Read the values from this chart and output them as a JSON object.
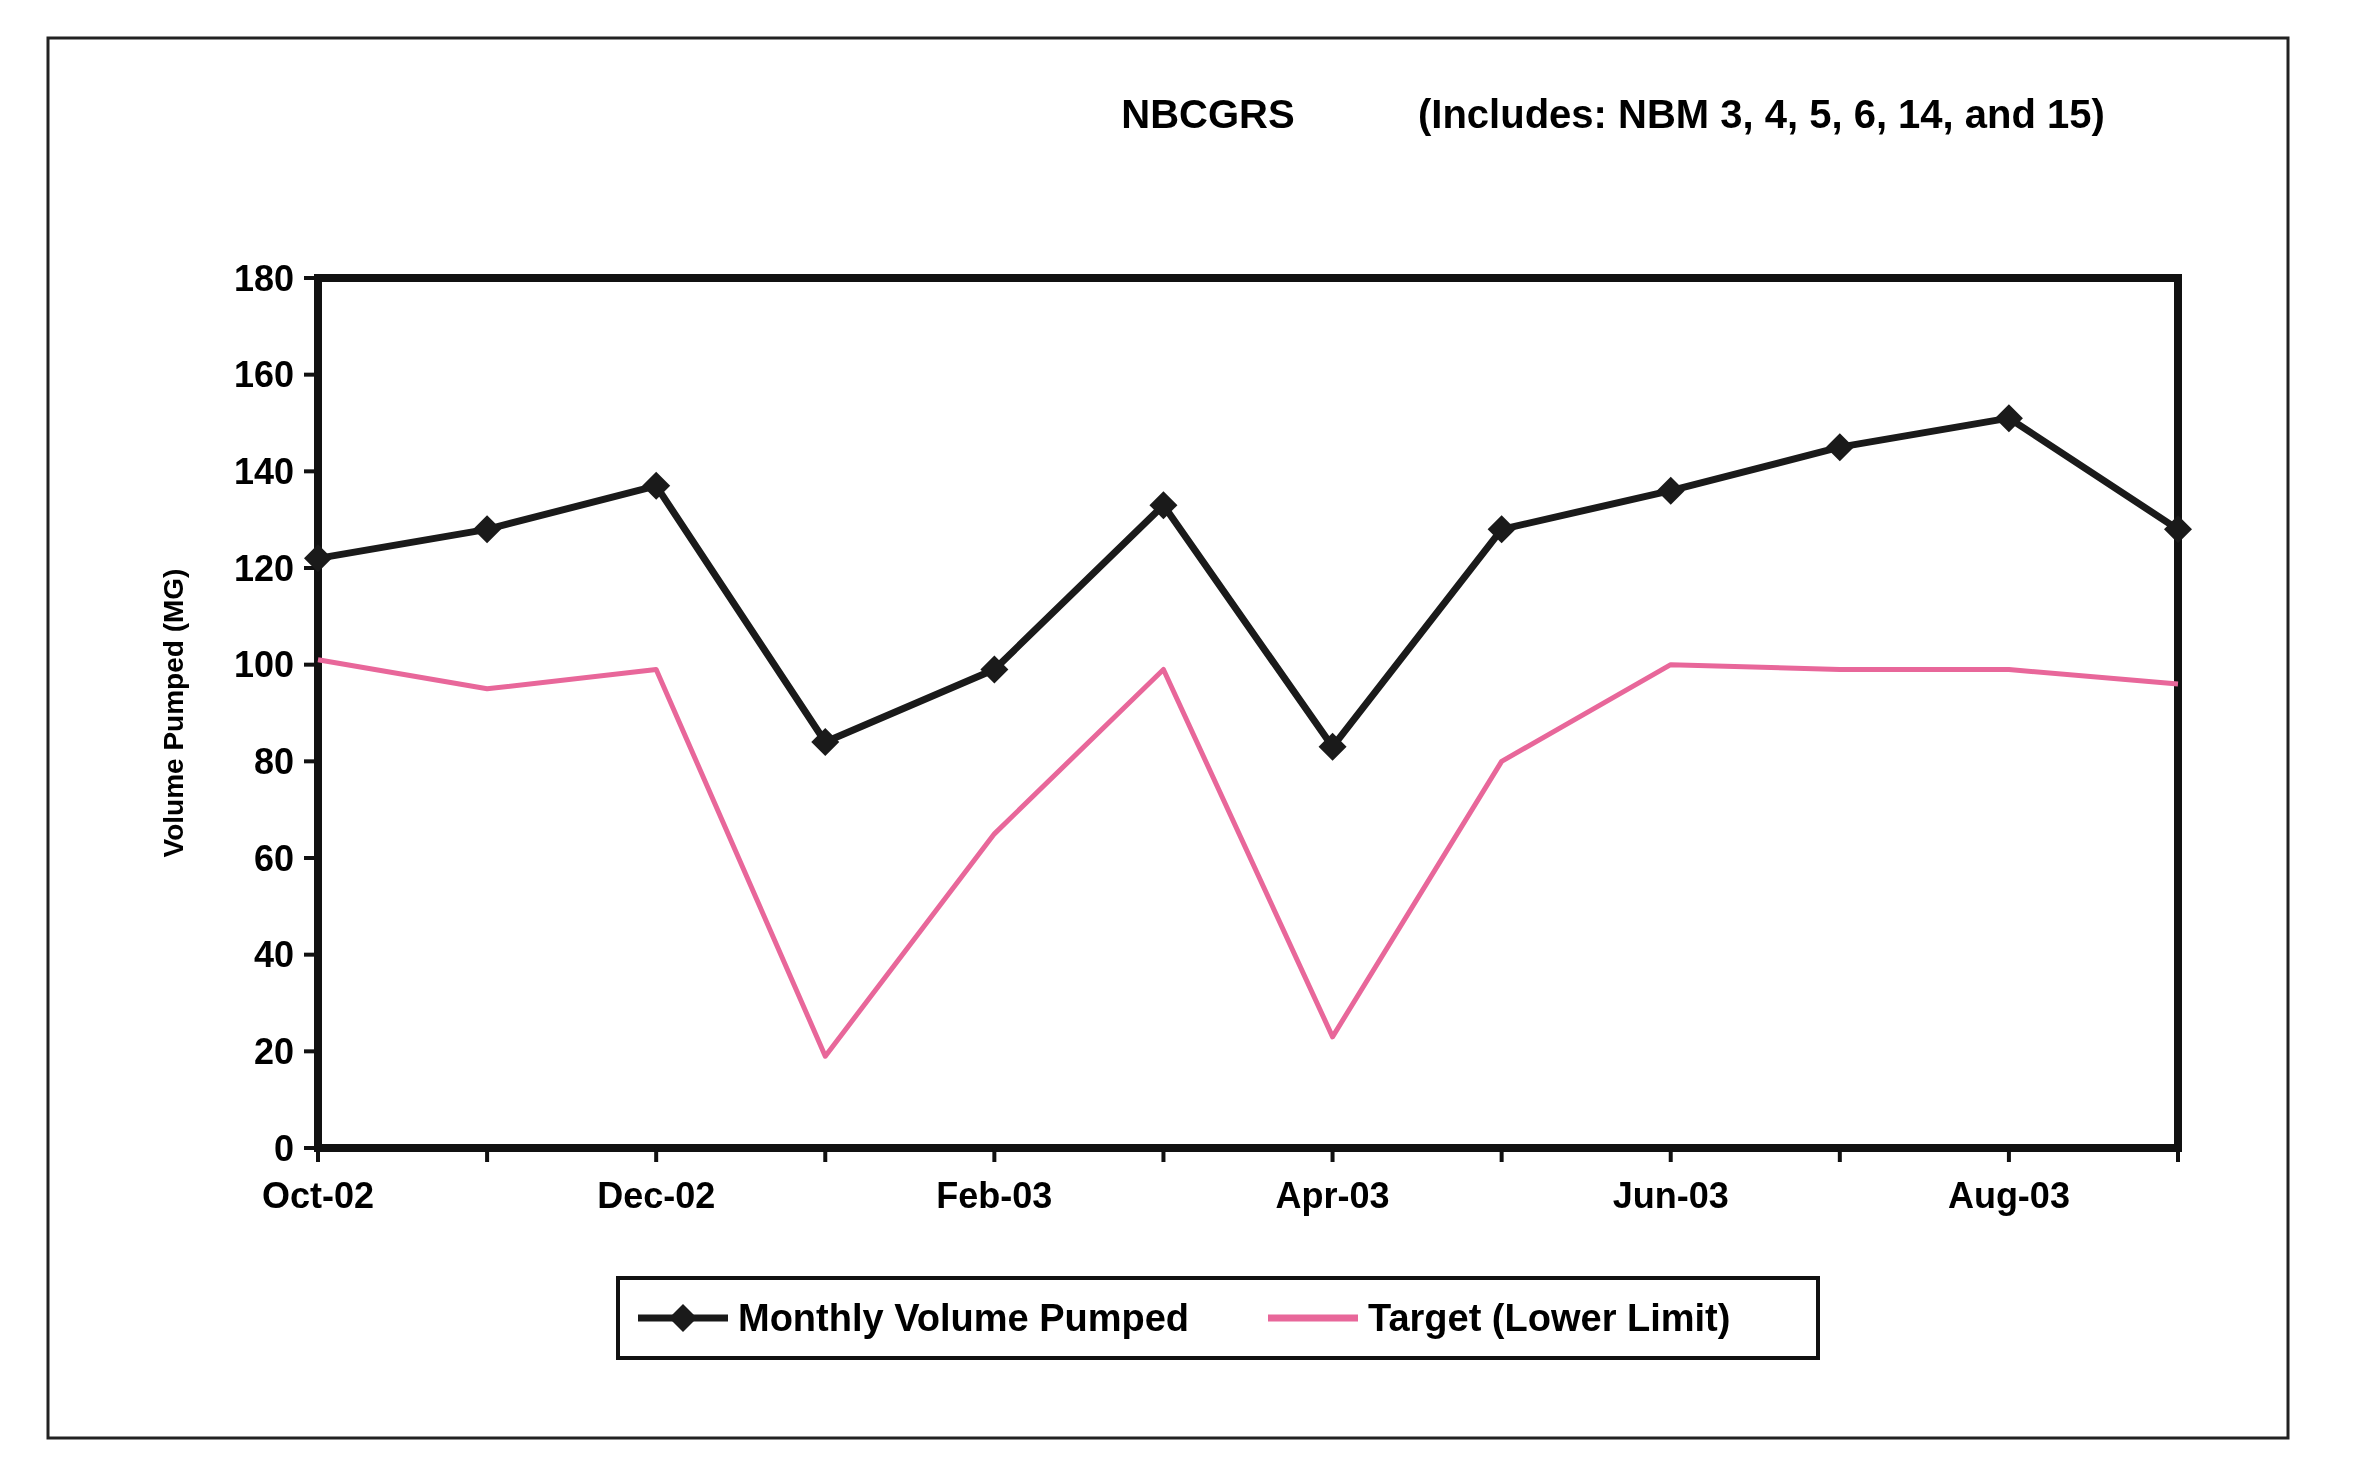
{
  "chart_data": {
    "type": "line",
    "title": "NBCGRS",
    "subtitle": "(Includes:  NBM 3, 4, 5, 6, 14, and 15)",
    "ylabel": "Volume Pumped (MG)",
    "categories": [
      "Oct-02",
      null,
      "Dec-02",
      null,
      "Feb-03",
      null,
      "Apr-03",
      null,
      "Jun-03",
      null,
      "Aug-03",
      null
    ],
    "series": [
      {
        "name": "Monthly Volume Pumped",
        "color": "#1a1a1a",
        "marker": "diamond",
        "values": [
          122,
          128,
          137,
          84,
          99,
          133,
          83,
          128,
          136,
          145,
          151,
          128
        ]
      },
      {
        "name": "Target (Lower Limit)",
        "color": "#e8679a",
        "marker": "none",
        "values": [
          101,
          95,
          99,
          19,
          65,
          99,
          23,
          80,
          100,
          99,
          99,
          96
        ]
      }
    ],
    "ylim": [
      0,
      180
    ],
    "yticks": [
      0,
      20,
      40,
      60,
      80,
      100,
      120,
      140,
      160,
      180
    ],
    "grid": false,
    "legend": "bottom"
  }
}
